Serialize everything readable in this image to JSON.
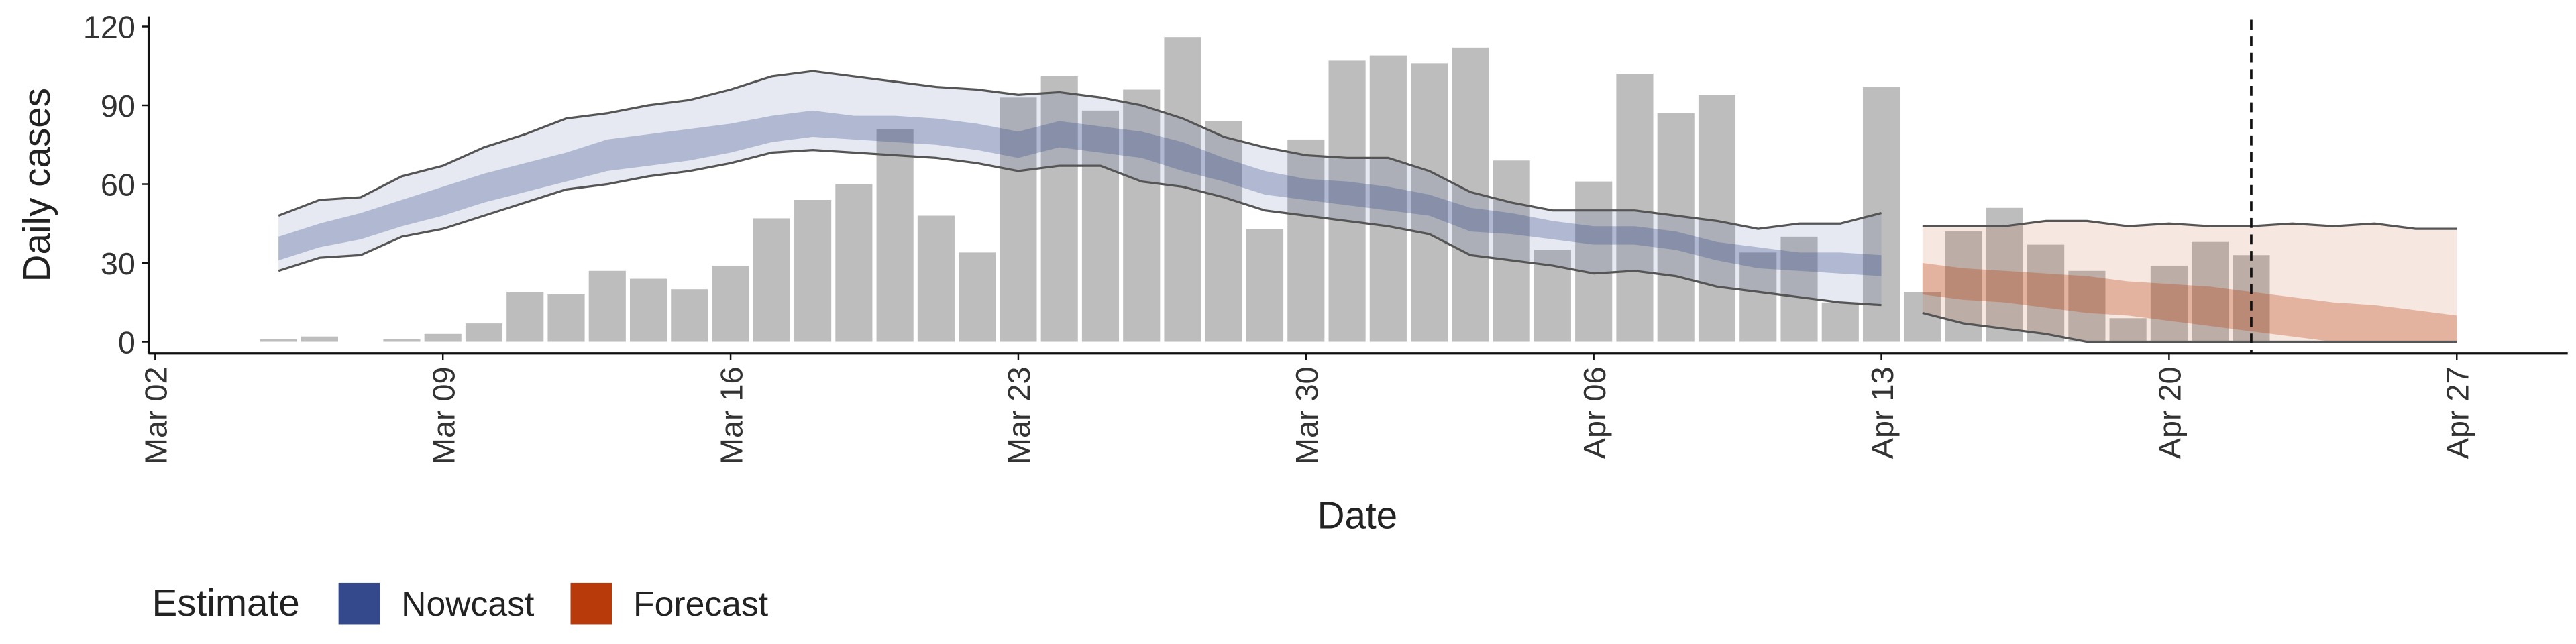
{
  "chart_data": {
    "type": "bar",
    "x_title": "Date",
    "y_title": "Daily cases",
    "categories": [
      "Mar 02",
      null,
      null,
      null,
      null,
      null,
      null,
      "Mar 09",
      null,
      null,
      null,
      null,
      null,
      null,
      "Mar 16",
      null,
      null,
      null,
      null,
      null,
      null,
      "Mar 23",
      null,
      null,
      null,
      null,
      null,
      null,
      "Mar 30",
      null,
      null,
      null,
      null,
      null,
      null,
      "Apr 06",
      null,
      null,
      null,
      null,
      null,
      null,
      "Apr 13",
      null,
      null,
      null,
      null,
      null,
      null,
      "Apr 20",
      null,
      null,
      null,
      null,
      null,
      null,
      "Apr 27"
    ],
    "xlim": [
      -0.16,
      58.7
    ],
    "ylim": [
      -4.4,
      123.8
    ],
    "yticks": [
      0,
      30,
      60,
      90,
      120
    ],
    "bar_color": "#bdbdbd",
    "values": [
      null,
      null,
      null,
      1,
      2,
      null,
      1,
      3,
      7,
      19,
      18,
      27,
      24,
      20,
      29,
      47,
      54,
      60,
      81,
      48,
      34,
      93,
      101,
      88,
      96,
      116,
      84,
      43,
      77,
      107,
      109,
      106,
      112,
      69,
      35,
      61,
      102,
      87,
      94,
      34,
      40,
      15,
      97,
      19,
      42,
      51,
      37,
      27,
      9,
      29,
      38,
      33,
      null,
      null,
      null,
      null,
      null
    ],
    "reference_line": 51,
    "legend_title": "Estimate",
    "series": [
      {
        "name": "Nowcast",
        "color": "#34488c",
        "upper90": [
          null,
          null,
          null,
          48,
          54,
          55,
          63,
          67,
          74,
          79,
          85,
          87,
          90,
          92,
          96,
          101,
          103,
          101,
          99,
          97,
          96,
          94,
          95,
          93,
          90,
          85,
          78,
          74,
          71,
          70,
          70,
          65,
          57,
          53,
          50,
          50,
          50,
          48,
          46,
          43,
          45,
          45,
          49,
          null,
          null,
          null,
          null,
          null,
          null,
          null,
          null,
          null,
          null,
          null,
          null,
          null,
          null
        ],
        "lower90": [
          null,
          null,
          null,
          27,
          32,
          33,
          40,
          43,
          48,
          53,
          58,
          60,
          63,
          65,
          68,
          72,
          73,
          72,
          71,
          70,
          68,
          65,
          67,
          67,
          61,
          59,
          55,
          50,
          48,
          46,
          44,
          41,
          33,
          31,
          29,
          26,
          27,
          25,
          21,
          19,
          17,
          15,
          14,
          null,
          null,
          null,
          null,
          null,
          null,
          null,
          null,
          null,
          null,
          null,
          null,
          null,
          null
        ],
        "upper50": [
          null,
          null,
          null,
          40,
          45,
          49,
          54,
          59,
          64,
          68,
          72,
          77,
          79,
          81,
          83,
          86,
          88,
          86,
          86,
          85,
          83,
          80,
          84,
          82,
          80,
          76,
          70,
          65,
          62,
          61,
          59,
          56,
          51,
          49,
          46,
          44,
          44,
          42,
          38,
          36,
          34,
          34,
          33,
          null,
          null,
          null,
          null,
          null,
          null,
          null,
          null,
          null,
          null,
          null,
          null,
          null,
          null
        ],
        "lower50": [
          null,
          null,
          null,
          31,
          36,
          39,
          44,
          48,
          53,
          57,
          61,
          65,
          67,
          69,
          72,
          76,
          78,
          77,
          76,
          75,
          73,
          70,
          74,
          72,
          70,
          65,
          61,
          56,
          54,
          52,
          50,
          48,
          42,
          41,
          39,
          37,
          37,
          35,
          31,
          28,
          27,
          26,
          25,
          null,
          null,
          null,
          null,
          null,
          null,
          null,
          null,
          null,
          null,
          null,
          null,
          null,
          null
        ]
      },
      {
        "name": "Forecast",
        "color": "#b83a0b",
        "upper90": [
          null,
          null,
          null,
          null,
          null,
          null,
          null,
          null,
          null,
          null,
          null,
          null,
          null,
          null,
          null,
          null,
          null,
          null,
          null,
          null,
          null,
          null,
          null,
          null,
          null,
          null,
          null,
          null,
          null,
          null,
          null,
          null,
          null,
          null,
          null,
          null,
          null,
          null,
          null,
          null,
          null,
          null,
          null,
          44,
          44,
          44,
          46,
          46,
          44,
          45,
          44,
          44,
          45,
          44,
          45,
          43,
          43
        ],
        "lower90": [
          null,
          null,
          null,
          null,
          null,
          null,
          null,
          null,
          null,
          null,
          null,
          null,
          null,
          null,
          null,
          null,
          null,
          null,
          null,
          null,
          null,
          null,
          null,
          null,
          null,
          null,
          null,
          null,
          null,
          null,
          null,
          null,
          null,
          null,
          null,
          null,
          null,
          null,
          null,
          null,
          null,
          null,
          null,
          11,
          7,
          5,
          3,
          0,
          0,
          0,
          0,
          0,
          0,
          0,
          0,
          0,
          0
        ],
        "upper50": [
          null,
          null,
          null,
          null,
          null,
          null,
          null,
          null,
          null,
          null,
          null,
          null,
          null,
          null,
          null,
          null,
          null,
          null,
          null,
          null,
          null,
          null,
          null,
          null,
          null,
          null,
          null,
          null,
          null,
          null,
          null,
          null,
          null,
          null,
          null,
          null,
          null,
          null,
          null,
          null,
          null,
          null,
          null,
          30,
          28,
          27,
          26,
          25,
          23,
          22,
          21,
          19,
          17,
          15,
          14,
          12,
          10
        ],
        "lower50": [
          null,
          null,
          null,
          null,
          null,
          null,
          null,
          null,
          null,
          null,
          null,
          null,
          null,
          null,
          null,
          null,
          null,
          null,
          null,
          null,
          null,
          null,
          null,
          null,
          null,
          null,
          null,
          null,
          null,
          null,
          null,
          null,
          null,
          null,
          null,
          null,
          null,
          null,
          null,
          null,
          null,
          null,
          null,
          18,
          16,
          15,
          13,
          11,
          10,
          8,
          6,
          4,
          2,
          0,
          0,
          0,
          0
        ]
      }
    ]
  }
}
